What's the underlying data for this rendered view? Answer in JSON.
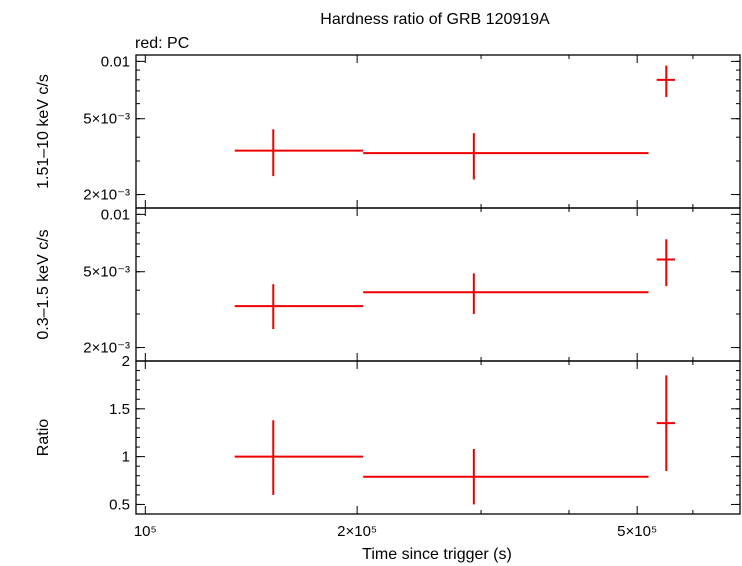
{
  "title": "Hardness ratio of GRB 120919A",
  "subtitle": "red: PC",
  "xlabel": "Time since trigger (s)",
  "colors": {
    "data": "#ee0000",
    "axes": "#000000"
  },
  "chart_data": [
    {
      "type": "scatter",
      "panel": "top",
      "ylabel": "1.51–10 keV c/s",
      "yscale": "log",
      "ylim": [
        0.0017,
        0.0108
      ],
      "yticks": [
        {
          "v": 0.01,
          "label": "0.01"
        },
        {
          "v": 0.005,
          "label": "5×10⁻³"
        },
        {
          "v": 0.002,
          "label": "2×10⁻³"
        }
      ],
      "series": [
        {
          "color": "#ee0000",
          "points": [
            {
              "x": 152000,
              "xlo": 134000,
              "xhi": 204000,
              "y": 0.0034,
              "ylo": 0.0025,
              "yhi": 0.0044
            },
            {
              "x": 293000,
              "xlo": 204000,
              "xhi": 519000,
              "y": 0.0033,
              "ylo": 0.0024,
              "yhi": 0.0042
            },
            {
              "x": 550000,
              "xlo": 533000,
              "xhi": 566000,
              "y": 0.008,
              "ylo": 0.0065,
              "yhi": 0.0095
            }
          ]
        }
      ]
    },
    {
      "type": "scatter",
      "panel": "middle",
      "ylabel": "0.3–1.5 keV c/s",
      "yscale": "log",
      "ylim": [
        0.0017,
        0.0108
      ],
      "yticks": [
        {
          "v": 0.01,
          "label": "0.01"
        },
        {
          "v": 0.005,
          "label": "5×10⁻³"
        },
        {
          "v": 0.002,
          "label": "2×10⁻³"
        }
      ],
      "series": [
        {
          "color": "#ee0000",
          "points": [
            {
              "x": 152000,
              "xlo": 134000,
              "xhi": 204000,
              "y": 0.0033,
              "ylo": 0.0025,
              "yhi": 0.0043
            },
            {
              "x": 293000,
              "xlo": 204000,
              "xhi": 519000,
              "y": 0.0039,
              "ylo": 0.003,
              "yhi": 0.0049
            },
            {
              "x": 550000,
              "xlo": 533000,
              "xhi": 566000,
              "y": 0.0058,
              "ylo": 0.0042,
              "yhi": 0.0074
            }
          ]
        }
      ]
    },
    {
      "type": "scatter",
      "panel": "bottom",
      "ylabel": "Ratio",
      "yscale": "linear",
      "ylim": [
        0.4,
        2.0
      ],
      "yticks": [
        {
          "v": 2,
          "label": "2"
        },
        {
          "v": 1.5,
          "label": "1.5"
        },
        {
          "v": 1,
          "label": "1"
        },
        {
          "v": 0.5,
          "label": "0.5"
        }
      ],
      "series": [
        {
          "color": "#ee0000",
          "points": [
            {
              "x": 152000,
              "xlo": 134000,
              "xhi": 204000,
              "y": 1.0,
              "ylo": 0.6,
              "yhi": 1.38
            },
            {
              "x": 293000,
              "xlo": 204000,
              "xhi": 519000,
              "y": 0.79,
              "ylo": 0.5,
              "yhi": 1.08
            },
            {
              "x": 550000,
              "xlo": 533000,
              "xhi": 566000,
              "y": 1.35,
              "ylo": 0.85,
              "yhi": 1.85
            }
          ]
        }
      ]
    }
  ],
  "xaxis": {
    "scale": "log",
    "xlim": [
      97000,
      700000
    ],
    "ticks": [
      {
        "v": 100000,
        "label": "10⁵"
      },
      {
        "v": 200000,
        "label": "2×10⁵"
      },
      {
        "v": 500000,
        "label": "5×10⁵"
      }
    ]
  }
}
